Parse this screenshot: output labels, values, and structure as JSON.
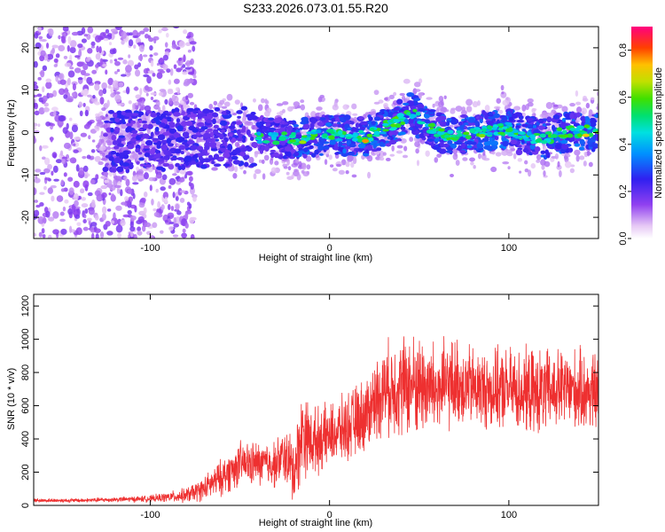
{
  "figure": {
    "title": "S233.2026.073.01.55.R20",
    "colors": {
      "axis": "#000000",
      "snr_line": "#ee3030"
    }
  },
  "chart_data": [
    {
      "type": "heatmap",
      "name": "spectrogram",
      "xlabel": "Height of straight line (km)",
      "ylabel": "Frequency (Hz)",
      "xlim": [
        -165,
        150
      ],
      "ylim": [
        -25,
        25
      ],
      "xticks": [
        -100,
        0,
        100
      ],
      "yticks": [
        -20,
        -10,
        0,
        10,
        20
      ],
      "colorbar": {
        "label": "Normalized spectral amplitude",
        "range": [
          0.0,
          0.9
        ],
        "ticks": [
          0.0,
          0.2,
          0.4,
          0.6,
          0.8
        ],
        "tick_labels": [
          "0.0",
          "0.2",
          "0.4",
          "0.6",
          "0.8"
        ]
      },
      "ridge": {
        "description": "dominant frequency ridge",
        "x": [
          -120,
          -100,
          -80,
          -60,
          -40,
          -20,
          0,
          20,
          30,
          40,
          45,
          50,
          60,
          70,
          80,
          90,
          100,
          110,
          120,
          130,
          140,
          150
        ],
        "y": [
          -2,
          -2,
          -1.5,
          -1,
          -1,
          -1.5,
          -0.5,
          -1,
          1,
          3,
          5,
          3,
          0,
          -1,
          0,
          0.5,
          1,
          -1,
          -1.5,
          0,
          0.5,
          0
        ]
      }
    },
    {
      "type": "line",
      "name": "snr",
      "xlabel": "Height of straight line (km)",
      "ylabel": "SNR (10 * v/v)",
      "xlim": [
        -165,
        150
      ],
      "ylim": [
        0,
        1270
      ],
      "xticks": [
        -100,
        0,
        100
      ],
      "yticks": [
        0,
        200,
        400,
        600,
        800,
        1000,
        1200
      ],
      "series": [
        {
          "name": "SNR",
          "color": "#ee3030",
          "x": [
            -165,
            -140,
            -120,
            -100,
            -90,
            -80,
            -70,
            -60,
            -50,
            -40,
            -30,
            -25,
            -20,
            -15,
            -10,
            0,
            10,
            20,
            30,
            40,
            50,
            60,
            70,
            80,
            90,
            100,
            110,
            120,
            130,
            140,
            150
          ],
          "y": [
            30,
            30,
            35,
            40,
            50,
            60,
            100,
            170,
            250,
            250,
            250,
            300,
            200,
            450,
            380,
            420,
            470,
            550,
            700,
            720,
            730,
            690,
            740,
            710,
            690,
            700,
            680,
            680,
            700,
            690,
            680
          ],
          "noise_amplitude": [
            12,
            12,
            15,
            20,
            30,
            45,
            70,
            110,
            130,
            130,
            140,
            160,
            220,
            260,
            200,
            180,
            200,
            220,
            260,
            300,
            300,
            280,
            260,
            240,
            230,
            240,
            250,
            250,
            240,
            240,
            240
          ]
        }
      ]
    }
  ]
}
